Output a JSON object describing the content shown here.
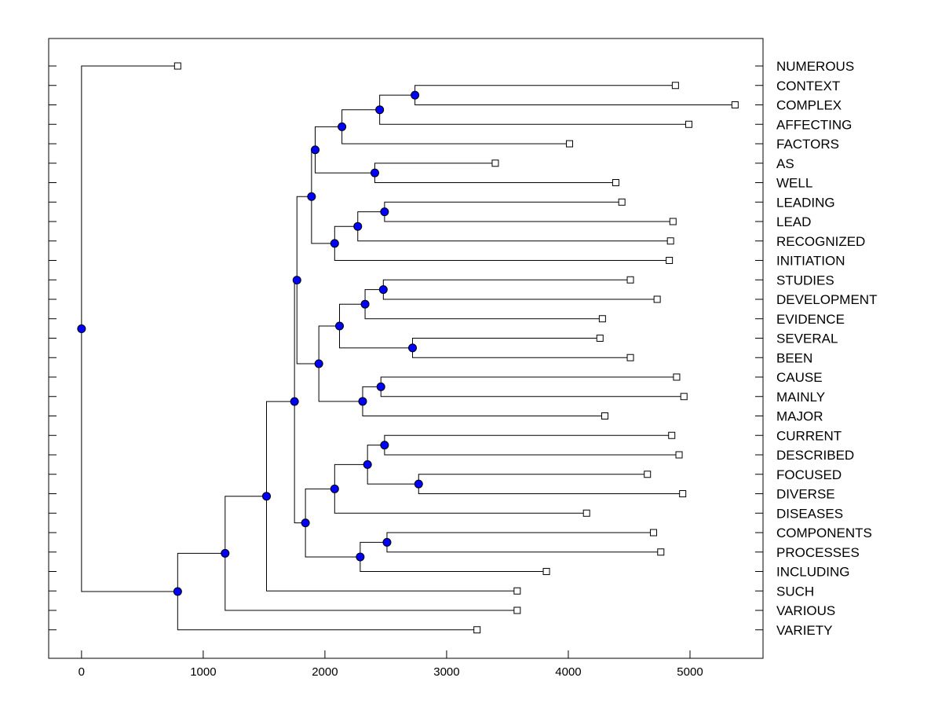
{
  "chart_data": {
    "type": "dendrogram",
    "xlim": [
      -270,
      5600
    ],
    "x_ticks": [
      0,
      1000,
      2000,
      3000,
      4000,
      5000
    ],
    "x_tick_labels": [
      "0",
      "1000",
      "2000",
      "3000",
      "4000",
      "5000"
    ],
    "leaves": [
      {
        "label": "NUMEROUS",
        "value": 790
      },
      {
        "label": "CONTEXT",
        "value": 4880
      },
      {
        "label": "COMPLEX",
        "value": 5370
      },
      {
        "label": "AFFECTING",
        "value": 4990
      },
      {
        "label": "FACTORS",
        "value": 4010
      },
      {
        "label": "AS",
        "value": 3400
      },
      {
        "label": "WELL",
        "value": 4390
      },
      {
        "label": "LEADING",
        "value": 4440
      },
      {
        "label": "LEAD",
        "value": 4860
      },
      {
        "label": "RECOGNIZED",
        "value": 4840
      },
      {
        "label": "INITIATION",
        "value": 4830
      },
      {
        "label": "STUDIES",
        "value": 4510
      },
      {
        "label": "DEVELOPMENT",
        "value": 4730
      },
      {
        "label": "EVIDENCE",
        "value": 4280
      },
      {
        "label": "SEVERAL",
        "value": 4260
      },
      {
        "label": "BEEN",
        "value": 4510
      },
      {
        "label": "CAUSE",
        "value": 4890
      },
      {
        "label": "MAINLY",
        "value": 4950
      },
      {
        "label": "MAJOR",
        "value": 4300
      },
      {
        "label": "CURRENT",
        "value": 4850
      },
      {
        "label": "DESCRIBED",
        "value": 4910
      },
      {
        "label": "FOCUSED",
        "value": 4650
      },
      {
        "label": "DIVERSE",
        "value": 4940
      },
      {
        "label": "DISEASES",
        "value": 4150
      },
      {
        "label": "COMPONENTS",
        "value": 4700
      },
      {
        "label": "PROCESSES",
        "value": 4760
      },
      {
        "label": "INCLUDING",
        "value": 3820
      },
      {
        "label": "SUCH",
        "value": 3580
      },
      {
        "label": "VARIOUS",
        "value": 3580
      },
      {
        "label": "VARIETY",
        "value": 3250
      }
    ],
    "merges": [
      {
        "a": "L1",
        "b": "L2",
        "height": 2740
      },
      {
        "a": "M0",
        "b": "L3",
        "height": 2450
      },
      {
        "a": "M1",
        "b": "L4",
        "height": 2140
      },
      {
        "a": "L5",
        "b": "L6",
        "height": 2410
      },
      {
        "a": "M2",
        "b": "M3",
        "height": 1920
      },
      {
        "a": "L7",
        "b": "L8",
        "height": 2490
      },
      {
        "a": "M5",
        "b": "L9",
        "height": 2270
      },
      {
        "a": "M6",
        "b": "L10",
        "height": 2080
      },
      {
        "a": "M4",
        "b": "M7",
        "height": 1890
      },
      {
        "a": "L11",
        "b": "L12",
        "height": 2480
      },
      {
        "a": "M9",
        "b": "L13",
        "height": 2330
      },
      {
        "a": "L14",
        "b": "L15",
        "height": 2720
      },
      {
        "a": "M10",
        "b": "M11",
        "height": 2120
      },
      {
        "a": "L16",
        "b": "L17",
        "height": 2460
      },
      {
        "a": "M13",
        "b": "L18",
        "height": 2310
      },
      {
        "a": "M12",
        "b": "M14",
        "height": 1950
      },
      {
        "a": "M8",
        "b": "M15",
        "height": 1770
      },
      {
        "a": "L19",
        "b": "L20",
        "height": 2490
      },
      {
        "a": "L21",
        "b": "L22",
        "height": 2770
      },
      {
        "a": "M17",
        "b": "M18",
        "height": 2350
      },
      {
        "a": "M19",
        "b": "L23",
        "height": 2080
      },
      {
        "a": "L24",
        "b": "L25",
        "height": 2510
      },
      {
        "a": "M21",
        "b": "L26",
        "height": 2290
      },
      {
        "a": "M20",
        "b": "M22",
        "height": 1840
      },
      {
        "a": "M16",
        "b": "M23",
        "height": 1750
      },
      {
        "a": "M24",
        "b": "L27",
        "height": 1520
      },
      {
        "a": "M25",
        "b": "L28",
        "height": 1180
      },
      {
        "a": "M26",
        "b": "L29",
        "height": 790
      },
      {
        "a": "L0",
        "b": "M27",
        "height": 0
      }
    ]
  }
}
